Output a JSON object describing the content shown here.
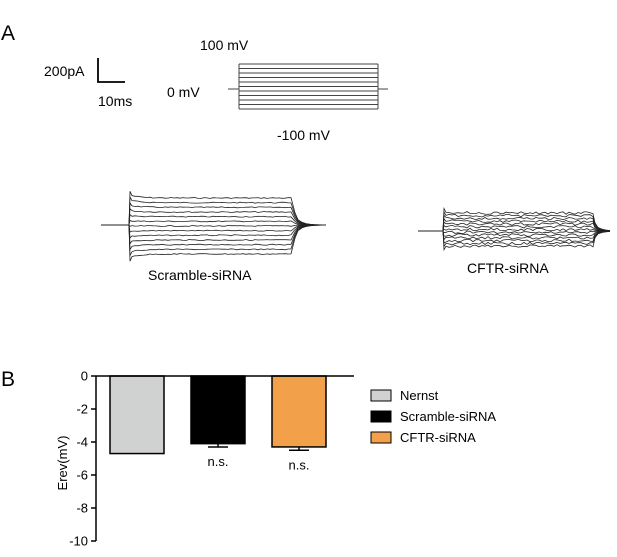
{
  "panels": {
    "a": "A",
    "b": "B"
  },
  "protocol": {
    "scale_current": "200pA",
    "scale_time": "10ms",
    "top_voltage": "100 mV",
    "hold_voltage": "0 mV",
    "bottom_voltage": "-100 mV",
    "n_steps": 11
  },
  "traces": {
    "scramble_label": "Scramble-siRNA",
    "cftr_label": "CFTR-siRNA"
  },
  "chart_data": {
    "type": "bar",
    "categories": [
      "Nernst",
      "Scramble-siRNA",
      "CFTR-siRNA"
    ],
    "values": [
      -4.7,
      -4.1,
      -4.3
    ],
    "errors": [
      0,
      0.2,
      0.2
    ],
    "colors": [
      "#d0d2d1",
      "#000000",
      "#f2a04a"
    ],
    "annotations": [
      "",
      "n.s.",
      "n.s."
    ],
    "ylabel": "Erev(mV)",
    "ylim": [
      -10,
      0
    ],
    "yticks": [
      "0",
      "-2",
      "-4",
      "-6",
      "-8",
      "-10"
    ],
    "legend": [
      "Nernst",
      "Scramble-siRNA",
      "CFTR-siRNA"
    ],
    "legend_position": "right"
  }
}
